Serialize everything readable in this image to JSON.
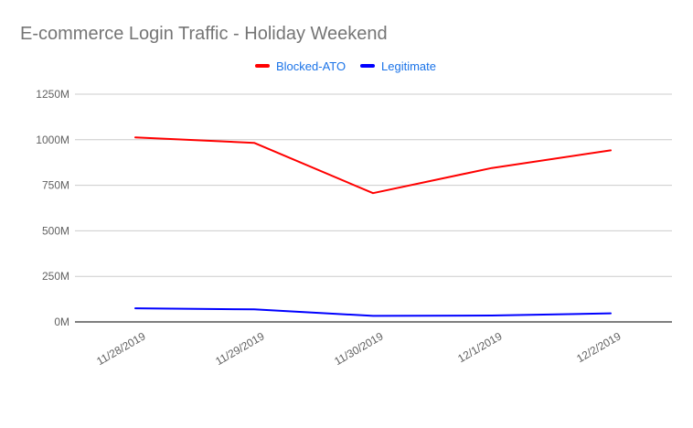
{
  "chart_data": {
    "type": "line",
    "title": "E-commerce Login Traffic - Holiday Weekend",
    "xlabel": "",
    "ylabel": "",
    "categories": [
      "11/28/2019",
      "11/29/2019",
      "11/30/2019",
      "12/1/2019",
      "12/2/2019"
    ],
    "series": [
      {
        "name": "Blocked-ATO",
        "color": "#ff0000",
        "values": [
          1013,
          983,
          707,
          845,
          942
        ]
      },
      {
        "name": "Legitimate",
        "color": "#0000ff",
        "values": [
          75,
          69,
          33,
          35,
          47
        ]
      }
    ],
    "y_ticks": [
      0,
      250,
      500,
      750,
      1000,
      1250
    ],
    "y_tick_labels": [
      "0M",
      "250M",
      "500M",
      "750M",
      "1000M",
      "1250M"
    ],
    "ylim": [
      0,
      1250
    ],
    "unit": "M",
    "grid": true,
    "legend_position": "top-center"
  }
}
